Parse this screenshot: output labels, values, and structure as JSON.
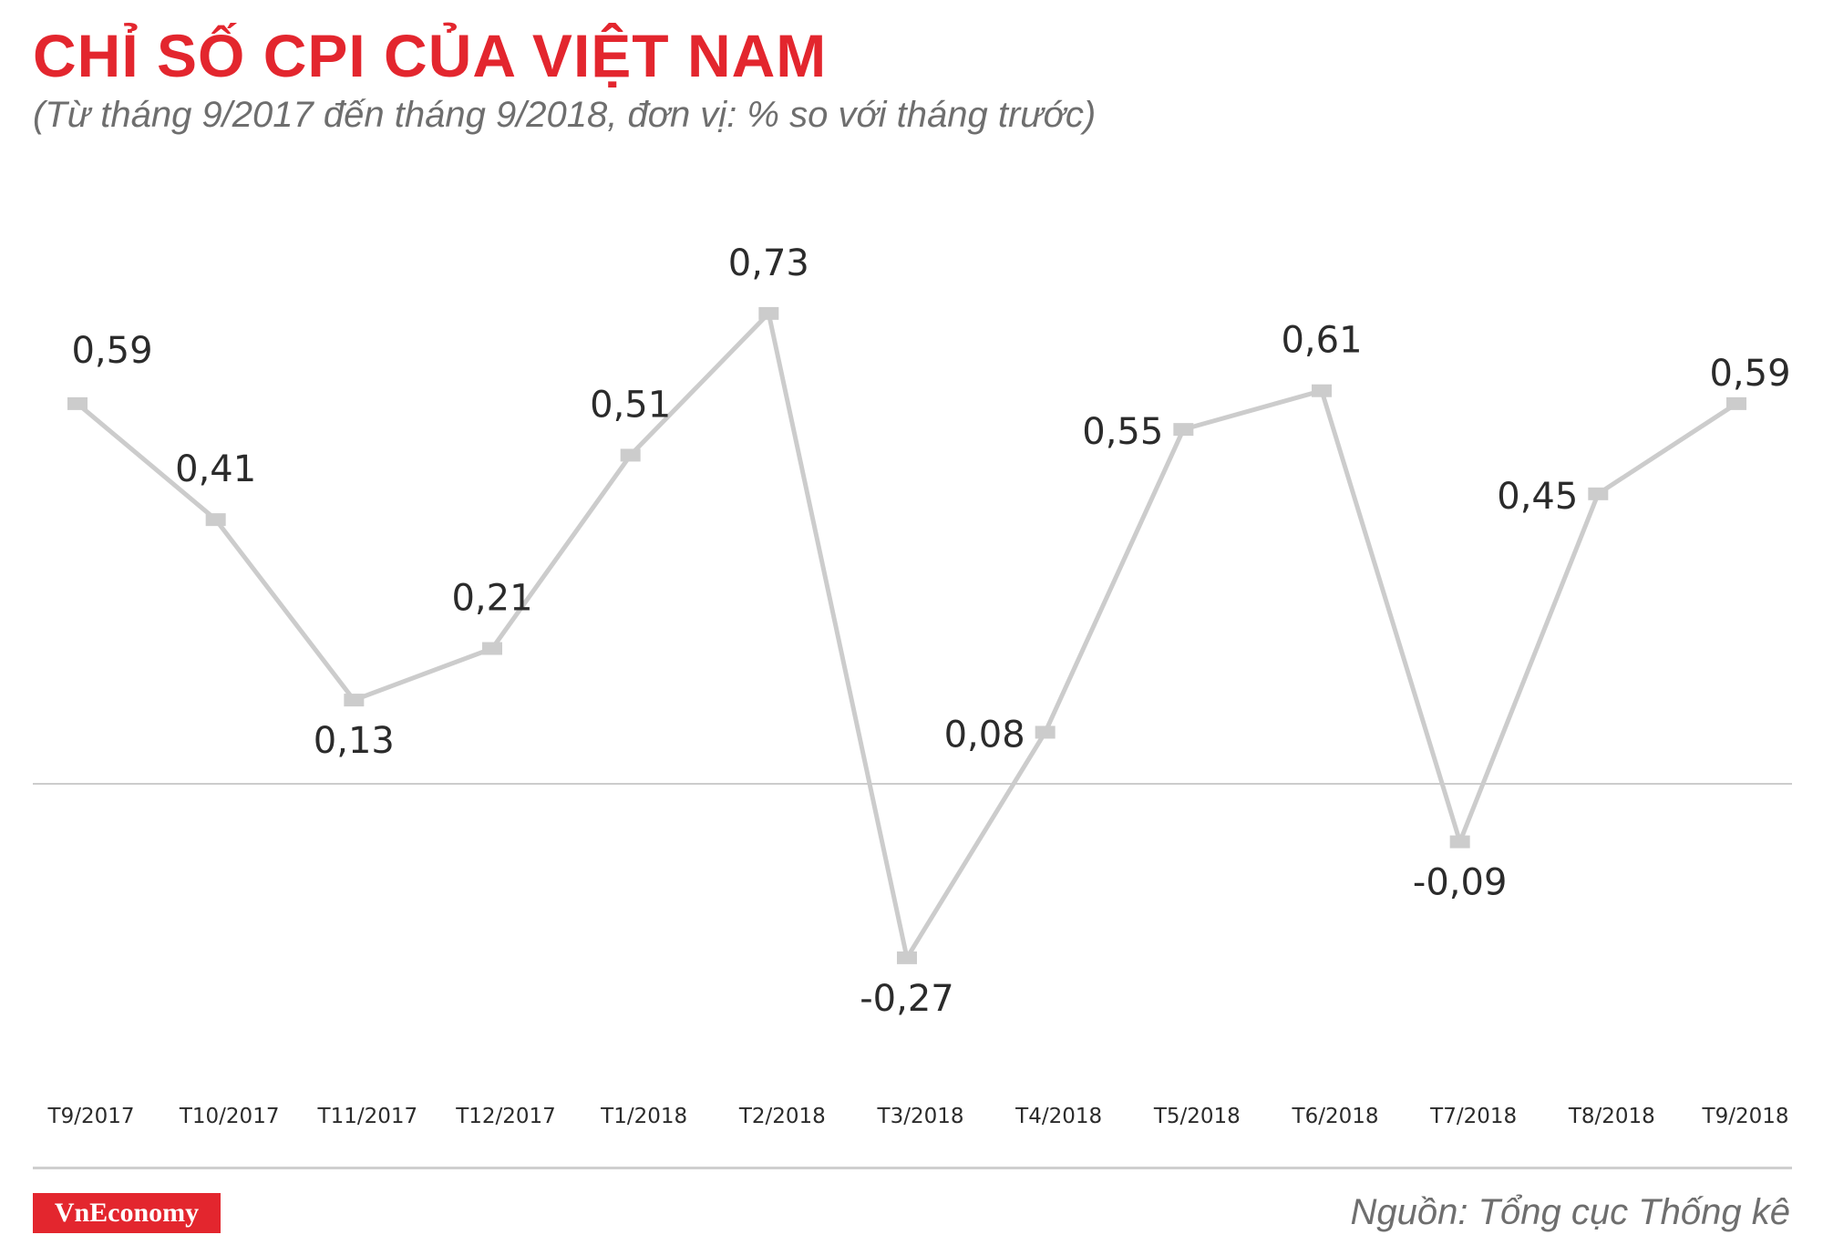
{
  "header": {
    "title": "CHỈ SỐ CPI CỦA VIỆT NAM",
    "subtitle": "(Từ tháng 9/2017 đến tháng 9/2018, đơn vị: % so với tháng trước)"
  },
  "chart_data": {
    "type": "line",
    "title": "CHỈ SỐ CPI CỦA VIỆT NAM",
    "subtitle": "(Từ tháng 9/2017 đến tháng 9/2018, đơn vị: % so với tháng trước)",
    "categories": [
      "T9/2017",
      "T10/2017",
      "T11/2017",
      "T12/2017",
      "T1/2018",
      "T2/2018",
      "T3/2018",
      "T4/2018",
      "T5/2018",
      "T6/2018",
      "T7/2018",
      "T8/2018",
      "T9/2018"
    ],
    "series": [
      {
        "values": [
          0.59,
          0.41,
          0.13,
          0.21,
          0.51,
          0.73,
          -0.27,
          0.08,
          0.55,
          0.61,
          -0.09,
          0.45,
          0.59
        ],
        "labels": [
          "0,59",
          "0,41",
          "0,13",
          "0,21",
          "0,51",
          "0,73",
          "-0,27",
          "0,08",
          "0,55",
          "0,61",
          "-0,09",
          "0,45",
          "0,59"
        ]
      }
    ],
    "zero_line": true,
    "grid": false,
    "line_color": "#cccccc",
    "marker_color": "#cccccc"
  },
  "footer": {
    "logo": "VnEconomy",
    "source": "Nguồn: Tổng cục Thống kê"
  },
  "colors": {
    "accent": "#e3262e",
    "subtitle": "#6e6e6e",
    "line": "#cccccc"
  }
}
